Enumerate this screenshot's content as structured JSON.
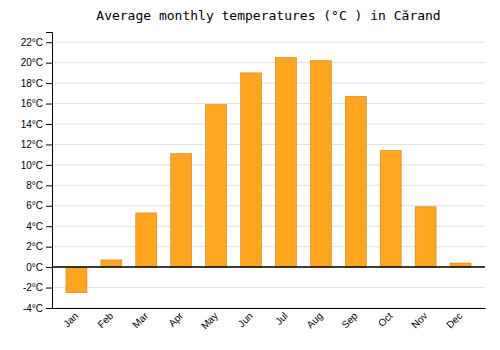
{
  "chart_data": {
    "type": "bar",
    "title": "Average monthly temperatures (°C ) in Cărand",
    "categories": [
      "Jan",
      "Feb",
      "Mar",
      "Apr",
      "May",
      "Jun",
      "Jul",
      "Aug",
      "Sep",
      "Oct",
      "Nov",
      "Dec"
    ],
    "values": [
      -2.5,
      0.7,
      5.3,
      11.1,
      15.9,
      19.0,
      20.5,
      20.2,
      16.7,
      11.4,
      5.9,
      0.4
    ],
    "color": "#FFA520",
    "ylim": [
      -4,
      23
    ],
    "yticks": [
      {
        "value": -4,
        "label": "-4°C"
      },
      {
        "value": -2,
        "label": "-2°C"
      },
      {
        "value": 0,
        "label": "0°C"
      },
      {
        "value": 2,
        "label": "2°C"
      },
      {
        "value": 4,
        "label": "4°C"
      },
      {
        "value": 6,
        "label": "6°C"
      },
      {
        "value": 8,
        "label": "8°C"
      },
      {
        "value": 10,
        "label": "10°C"
      },
      {
        "value": 12,
        "label": "12°C"
      },
      {
        "value": 14,
        "label": "14°C"
      },
      {
        "value": 16,
        "label": "16°C"
      },
      {
        "value": 18,
        "label": "18°C"
      },
      {
        "value": 20,
        "label": "20°C"
      },
      {
        "value": 22,
        "label": "22°C"
      }
    ],
    "grid": true
  }
}
